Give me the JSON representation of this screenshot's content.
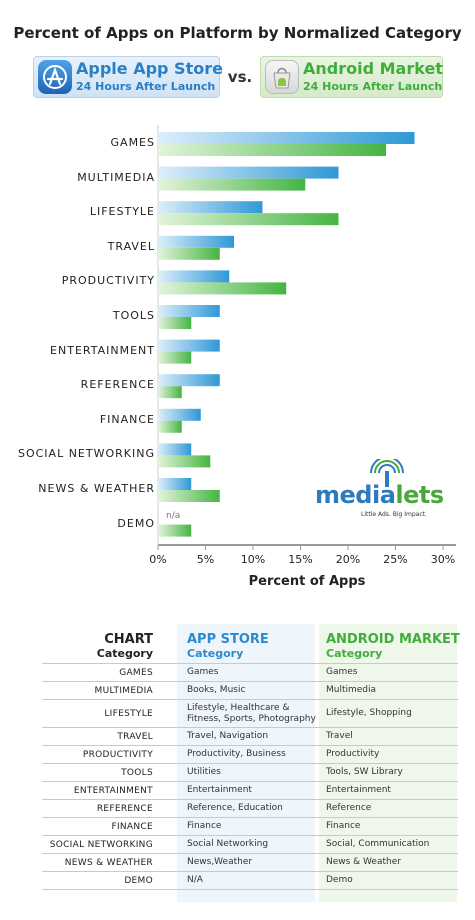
{
  "title": "Percent of Apps on Platform by Normalized Category",
  "header": {
    "apple": {
      "name": "Apple App Store",
      "sub": "24 Hours After Launch"
    },
    "vs": "vs.",
    "android": {
      "name": "Android Market",
      "sub": "24 Hours After Launch"
    }
  },
  "colors": {
    "apple": "#3a9fd8",
    "android": "#4cb848"
  },
  "chart_data": {
    "type": "bar",
    "orientation": "horizontal",
    "categories": [
      "GAMES",
      "MULTIMEDIA",
      "LIFESTYLE",
      "TRAVEL",
      "PRODUCTIVITY",
      "TOOLS",
      "ENTERTAINMENT",
      "REFERENCE",
      "FINANCE",
      "SOCIAL NETWORKING",
      "NEWS & WEATHER",
      "DEMO"
    ],
    "series": [
      {
        "name": "Apple App Store",
        "values": [
          27,
          19,
          11,
          8,
          7.5,
          6.5,
          6.5,
          6.5,
          4.5,
          3.5,
          3.5,
          null
        ]
      },
      {
        "name": "Android Market",
        "values": [
          24,
          15.5,
          19,
          6.5,
          13.5,
          3.5,
          3.5,
          2.5,
          2.5,
          5.5,
          6.5,
          3.5
        ]
      }
    ],
    "annotations": [
      {
        "category": "DEMO",
        "series": "Apple App Store",
        "text": "n/a"
      }
    ],
    "xlabel": "Percent of Apps",
    "xlim": [
      0,
      32
    ],
    "xticks": [
      "0%",
      "5%",
      "10%",
      "15%",
      "20%",
      "25%",
      "30%"
    ],
    "xtick_values": [
      0,
      5,
      10,
      15,
      20,
      25,
      30
    ]
  },
  "logo": {
    "word_a": "media",
    "word_b": "lets",
    "tagline": "Little Ads. Big Impact."
  },
  "table": {
    "header": {
      "chart": "CHART",
      "chart_sub": "Category",
      "app": "APP STORE",
      "app_sub": "Category",
      "android": "ANDROID MARKET",
      "android_sub": "Category"
    },
    "rows": [
      {
        "chart": "GAMES",
        "app": "Games",
        "android": "Games"
      },
      {
        "chart": "MULTIMEDIA",
        "app": "Books, Music",
        "android": "Multimedia"
      },
      {
        "chart": "LIFESTYLE",
        "app": "Lifestyle, Healthcare & Fitness, Sports, Photography",
        "android": "Lifestyle, Shopping"
      },
      {
        "chart": "TRAVEL",
        "app": "Travel, Navigation",
        "android": "Travel"
      },
      {
        "chart": "PRODUCTIVITY",
        "app": "Productivity, Business",
        "android": "Productivity"
      },
      {
        "chart": "TOOLS",
        "app": "Utilities",
        "android": "Tools, SW Library"
      },
      {
        "chart": "ENTERTAINMENT",
        "app": "Entertainment",
        "android": "Entertainment"
      },
      {
        "chart": "REFERENCE",
        "app": "Reference, Education",
        "android": "Reference"
      },
      {
        "chart": "FINANCE",
        "app": "Finance",
        "android": "Finance"
      },
      {
        "chart": "SOCIAL NETWORKING",
        "app": "Social Networking",
        "android": "Social, Communication"
      },
      {
        "chart": "NEWS & WEATHER",
        "app": "News,Weather",
        "android": "News & Weather"
      },
      {
        "chart": "DEMO",
        "app": "N/A",
        "android": "Demo"
      }
    ]
  }
}
